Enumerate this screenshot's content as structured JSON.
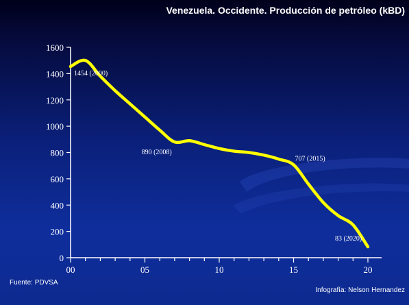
{
  "title": "Venezuela.  Occidente.  Producción de petróleo (kBD)",
  "source": "Fuente: PDVSA",
  "credit": "Infografía: Nelson Hernandez",
  "colors": {
    "line": "#ffff00",
    "axis": "#ffffff",
    "text": "#ffffff"
  },
  "chart_data": {
    "type": "line",
    "title": "Venezuela.  Occidente.  Producción de petróleo (kBD)",
    "xlabel": "",
    "ylabel": "",
    "xlim": [
      0,
      20
    ],
    "ylim": [
      0,
      1600
    ],
    "x_ticks": [
      "00",
      "05",
      "10",
      "15",
      "20"
    ],
    "x_tick_values": [
      0,
      5,
      10,
      15,
      20
    ],
    "y_ticks": [
      "0",
      "200",
      "400",
      "600",
      "800",
      "1000",
      "1200",
      "1400",
      "1600"
    ],
    "y_tick_values": [
      0,
      200,
      400,
      600,
      800,
      1000,
      1200,
      1400,
      1600
    ],
    "grid": false,
    "series": [
      {
        "x": [
          0,
          1,
          2,
          3,
          4,
          5,
          6,
          7,
          8,
          9,
          10,
          11,
          12,
          13,
          14,
          15,
          16,
          17,
          18,
          19,
          20
        ],
        "values": [
          1454,
          1500,
          1380,
          1270,
          1170,
          1070,
          970,
          880,
          890,
          860,
          830,
          810,
          800,
          780,
          750,
          707,
          560,
          420,
          320,
          250,
          83
        ]
      }
    ],
    "annotations": [
      {
        "x": 0,
        "y": 1454,
        "text": "1454 (2000)"
      },
      {
        "x": 8,
        "y": 890,
        "text": "890 (2008)"
      },
      {
        "x": 15,
        "y": 707,
        "text": "707 (2015)"
      },
      {
        "x": 20,
        "y": 83,
        "text": "83 (2020)"
      }
    ]
  }
}
